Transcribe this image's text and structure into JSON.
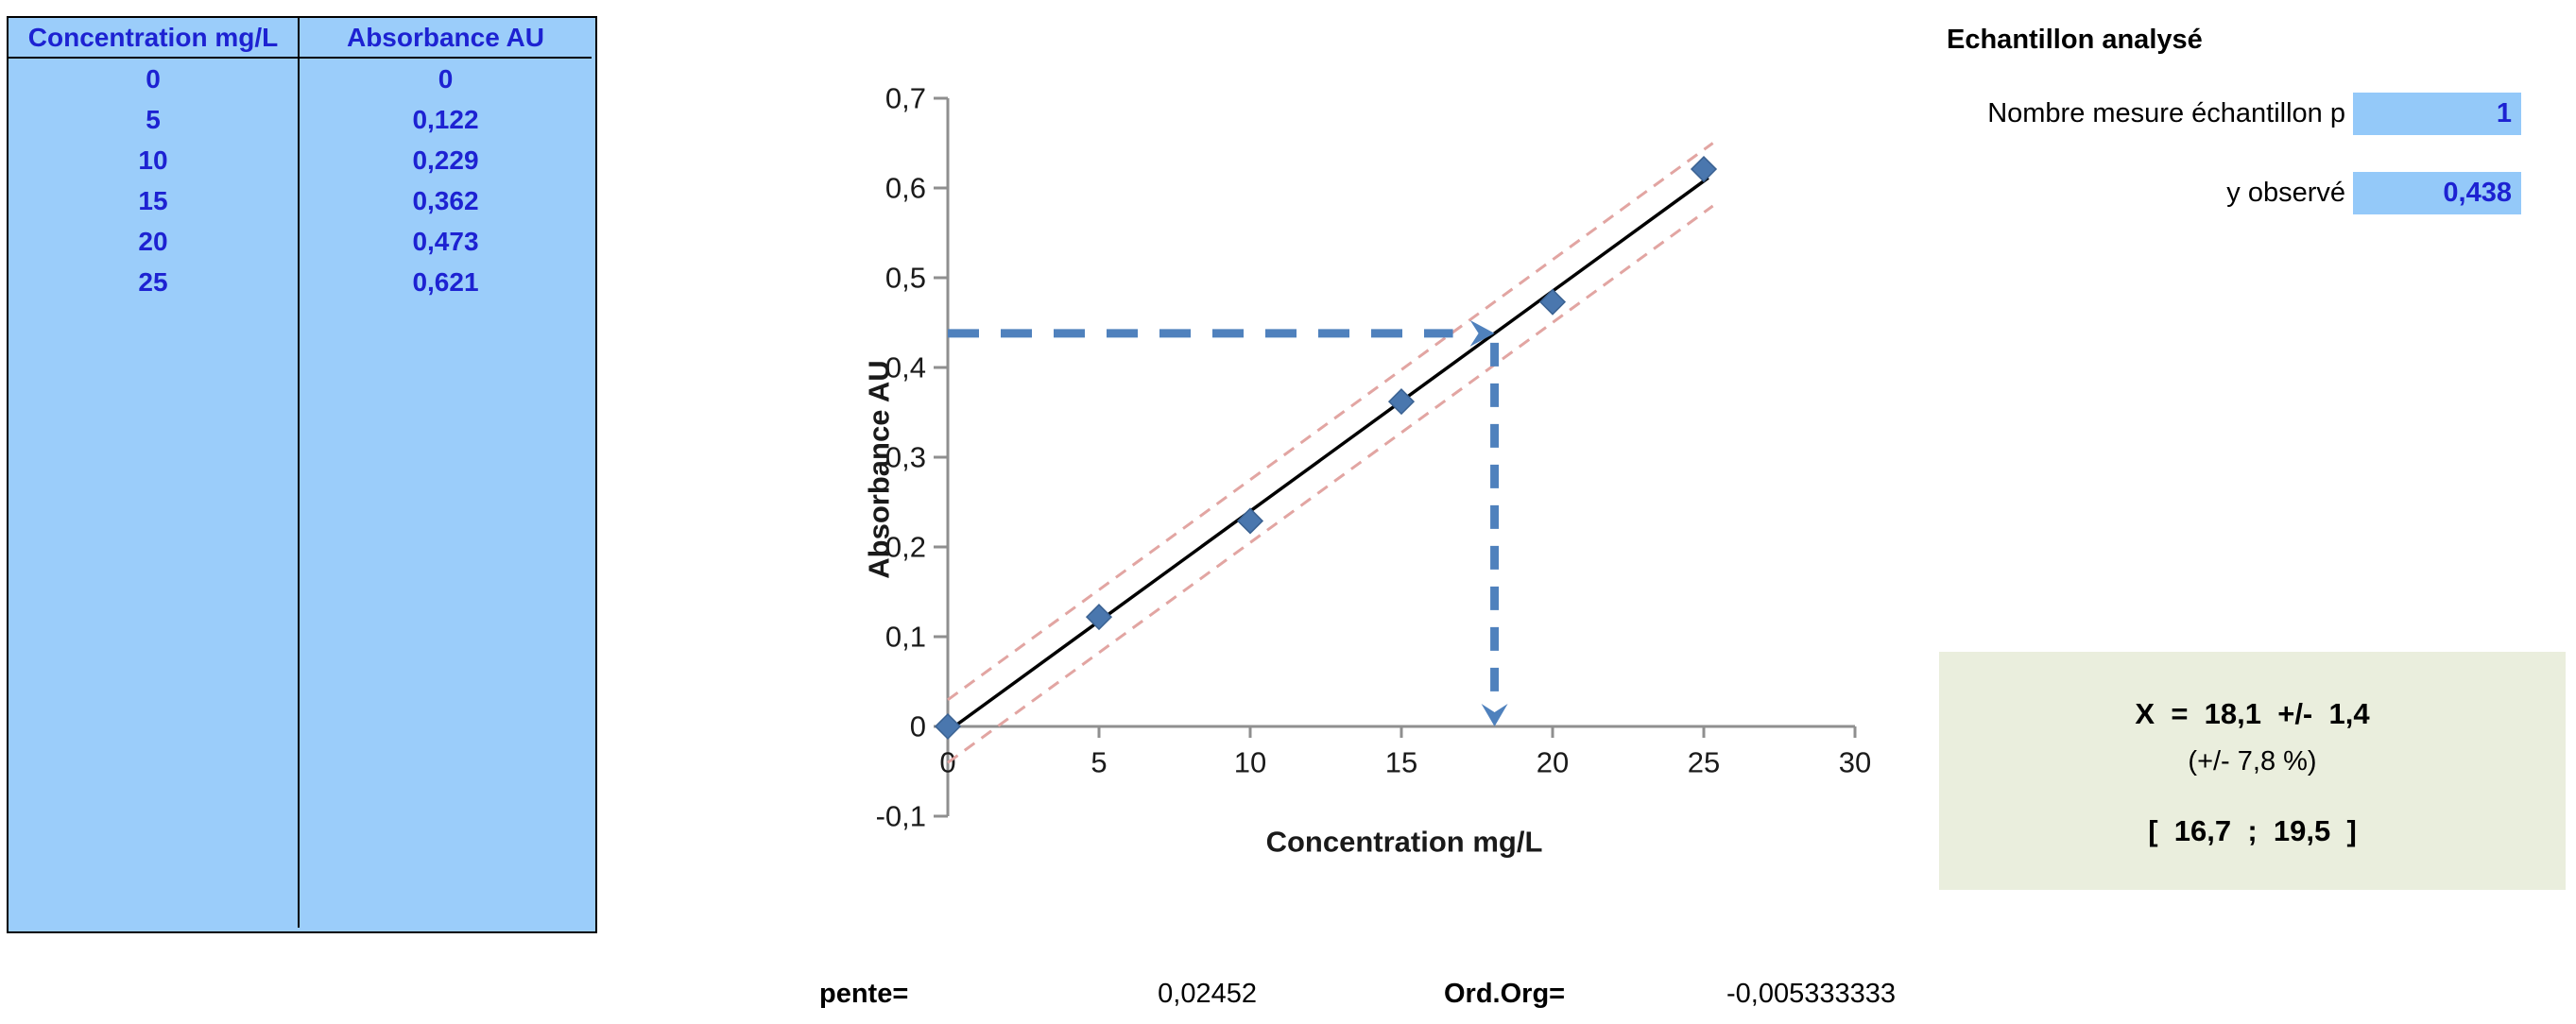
{
  "table": {
    "headers": [
      "Concentration mg/L",
      "Absorbance AU"
    ],
    "rows": [
      [
        "0",
        "0"
      ],
      [
        "5",
        "0,122"
      ],
      [
        "10",
        "0,229"
      ],
      [
        "15",
        "0,362"
      ],
      [
        "20",
        "0,473"
      ],
      [
        "25",
        "0,621"
      ]
    ]
  },
  "sample_panel": {
    "title": "Echantillon analysé",
    "fields": [
      {
        "label": "Nombre mesure échantillon p",
        "value": "1"
      },
      {
        "label": "y observé",
        "value": "0,438"
      }
    ]
  },
  "result_box": {
    "line1": "X  =  18,1  +/-  1,4",
    "line2": "(+/- 7,8 %)",
    "line3": "[  16,7  ;  19,5  ]"
  },
  "stats": {
    "slope_label": "pente=",
    "slope_value": "0,02452",
    "intercept_label": "Ord.Org=",
    "intercept_value": "-0,005333333"
  },
  "chart_data": {
    "type": "scatter",
    "x": [
      0,
      5,
      10,
      15,
      20,
      25
    ],
    "y": [
      0,
      0.122,
      0.229,
      0.362,
      0.473,
      0.621
    ],
    "title": "",
    "xlabel": "Concentration mg/L",
    "ylabel": "Absorbance AU",
    "xlim": [
      0,
      30
    ],
    "ylim": [
      -0.1,
      0.7
    ],
    "grid": false,
    "legend": null,
    "xticks": {
      "values": [
        0,
        5,
        10,
        15,
        20,
        25,
        30
      ],
      "labels": [
        "0",
        "5",
        "10",
        "15",
        "20",
        "25",
        "30"
      ]
    },
    "yticks": {
      "values": [
        0.7,
        0.6,
        0.5,
        0.4,
        0.3,
        0.2,
        0.1,
        0,
        -0.1
      ],
      "labels": [
        "0,7",
        "0,6",
        "0,5",
        "0,4",
        "0,3",
        "0,2",
        "0,1",
        "0",
        "-0,1"
      ]
    },
    "regression": {
      "slope": 0.02452,
      "intercept": -0.005333333,
      "x_start": 0,
      "x_end": 25.15
    },
    "confidence": {
      "offset": 0.035,
      "x_start": 0,
      "x_end": 25.3
    },
    "crosshair": {
      "y_observed": 0.438,
      "x_estimated": 18.1
    },
    "colors": {
      "marker": "#4A77AE",
      "regression": "#000000",
      "confidence": "#E2A5A2",
      "crosshair": "#4F81BD",
      "axis": "#8F8F8F",
      "tick_text": "#1a1a1a"
    }
  }
}
